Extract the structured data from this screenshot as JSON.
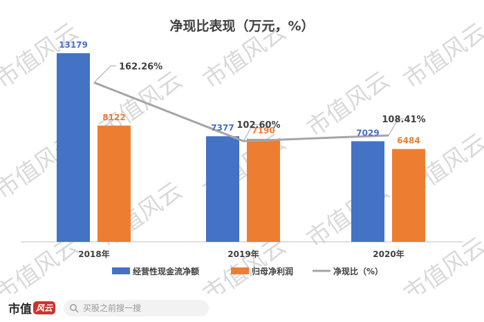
{
  "chart_data": {
    "type": "bar",
    "title": "净现比表现（万元，%）",
    "categories": [
      "2018年",
      "2019年",
      "2020年"
    ],
    "series": [
      {
        "name": "经营性现金流净额",
        "kind": "bar",
        "color": "#4472C4",
        "values": [
          13179,
          7377,
          7029
        ]
      },
      {
        "name": "归母净利润",
        "kind": "bar",
        "color": "#ED7D31",
        "values": [
          8122,
          7190,
          6484
        ]
      },
      {
        "name": "净现比（%）",
        "kind": "line",
        "color": "#A5A5A5",
        "values": [
          162.26,
          102.6,
          108.41
        ]
      }
    ],
    "bar_labels": [
      [
        "13179",
        "7377",
        "7029"
      ],
      [
        "8122",
        "7190",
        "6484"
      ]
    ],
    "line_labels": [
      "162.26%",
      "102.60%",
      "108.41%"
    ],
    "ylim": [
      0,
      14000
    ],
    "line_ylim": [
      0,
      200
    ],
    "grid": false,
    "legend_position": "bottom"
  },
  "watermark": "市值风云",
  "footer": {
    "brand": "市值",
    "brand_script": "风云",
    "search_placeholder": "买股之前搜一搜"
  }
}
